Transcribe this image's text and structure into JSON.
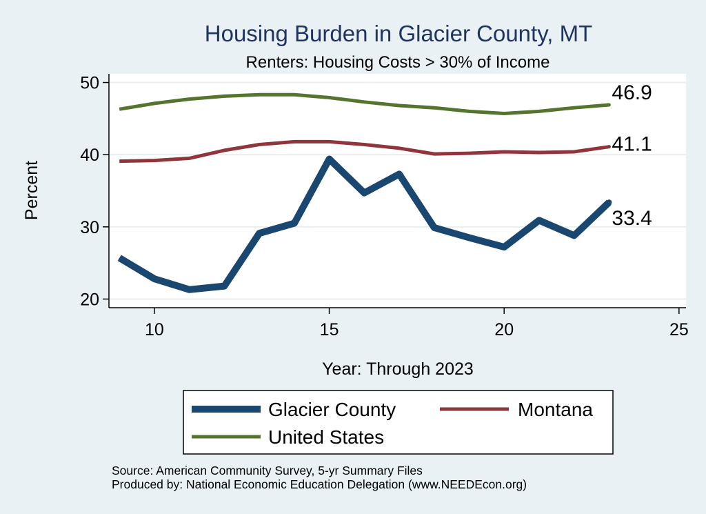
{
  "chart_data": {
    "type": "line",
    "title": "Housing Burden in Glacier County, MT",
    "subtitle": "Renters: Housing Costs > 30% of Income",
    "xlabel": "Year: Through 2023",
    "ylabel": "Percent",
    "xlim": [
      8.7,
      25.2
    ],
    "ylim": [
      18.8,
      51.2
    ],
    "xticks": [
      10,
      15,
      20,
      25
    ],
    "yticks": [
      20,
      30,
      40,
      50
    ],
    "grid": true,
    "legend_position": "bottom",
    "x": [
      9,
      10,
      11,
      12,
      13,
      14,
      15,
      16,
      17,
      18,
      19,
      20,
      21,
      22,
      23
    ],
    "series": [
      {
        "name": "Glacier County",
        "color": "#1a476f",
        "values": [
          25.7,
          22.8,
          21.3,
          21.8,
          29.1,
          30.5,
          39.4,
          34.7,
          37.3,
          29.9,
          28.5,
          27.2,
          30.9,
          28.8,
          33.4
        ],
        "end_label": "33.4"
      },
      {
        "name": "Montana",
        "color": "#90353b",
        "values": [
          39.1,
          39.2,
          39.5,
          40.6,
          41.4,
          41.8,
          41.8,
          41.4,
          40.9,
          40.1,
          40.2,
          40.4,
          40.3,
          40.4,
          41.1
        ],
        "end_label": "41.1"
      },
      {
        "name": "United States",
        "color": "#55752f",
        "values": [
          46.3,
          47.1,
          47.7,
          48.1,
          48.3,
          48.3,
          47.9,
          47.3,
          46.8,
          46.5,
          46.0,
          45.7,
          46.0,
          46.5,
          46.9
        ],
        "end_label": "46.9"
      }
    ]
  },
  "notes": {
    "source": "Source: American Community Survey, 5-yr Summary Files",
    "produced": "Produced by: National Economic Education Delegation (www.NEEDEcon.org)"
  }
}
